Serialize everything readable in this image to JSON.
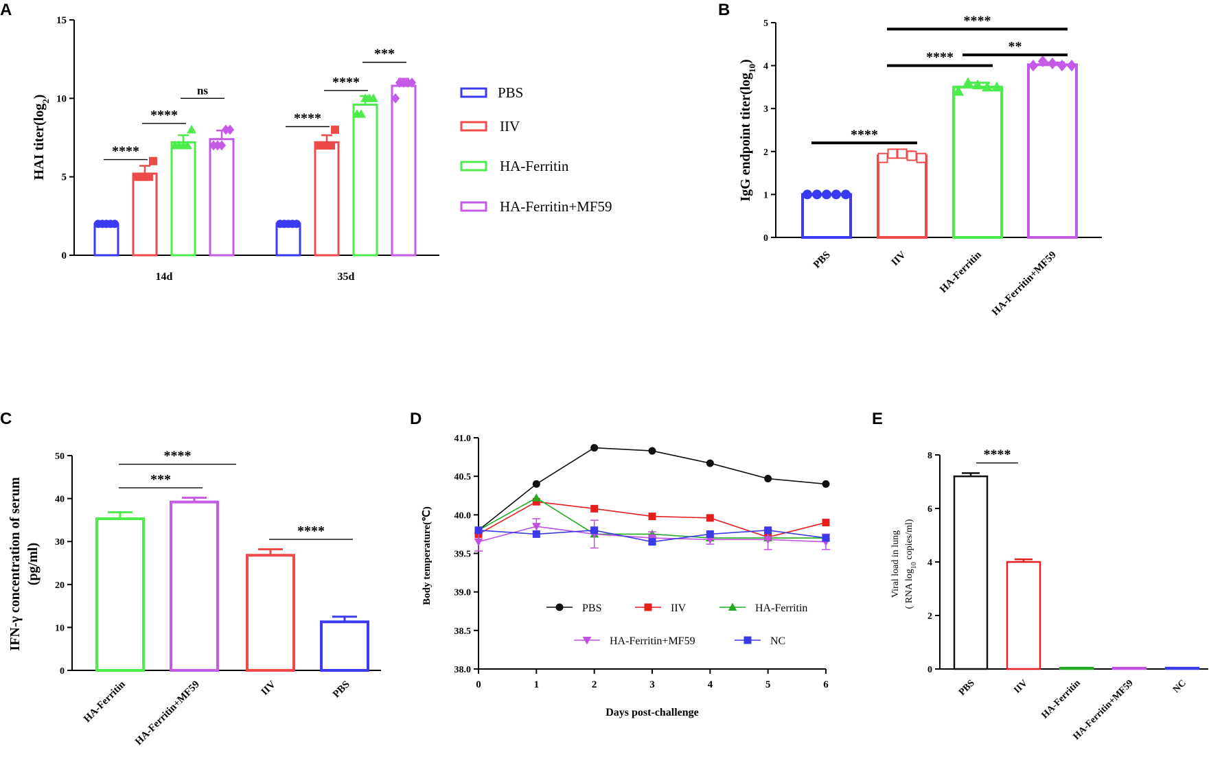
{
  "chart_data": [
    {
      "panel": "A",
      "type": "bar",
      "ylabel_main": "HAI titer(log",
      "ylabel_sub": "2",
      "ylabel_tail": ")",
      "ylim": [
        0,
        15
      ],
      "yticks": [
        "0",
        "5",
        "10",
        "15"
      ],
      "groups": [
        "14d",
        "35d"
      ],
      "legend": [
        "PBS",
        "IIV",
        "HA-Ferritin",
        "HA-Ferritin+MF59"
      ],
      "colors": [
        "#3a3af2",
        "#ef4a4a",
        "#4cec4c",
        "#c45ae6"
      ],
      "series": [
        {
          "name": "PBS",
          "values": [
            2,
            2
          ],
          "errors": [
            0,
            0
          ],
          "points": [
            [
              2,
              2,
              2,
              2,
              2
            ],
            [
              2,
              2,
              2,
              2,
              2
            ]
          ],
          "marker": "circle"
        },
        {
          "name": "IIV",
          "values": [
            5.2,
            7.2
          ],
          "errors": [
            0.5,
            0.45
          ],
          "points": [
            [
              5,
              5,
              5,
              5,
              6
            ],
            [
              7,
              7,
              7,
              7,
              8
            ]
          ],
          "marker": "square"
        },
        {
          "name": "HA-Ferritin",
          "values": [
            7.2,
            9.6
          ],
          "errors": [
            0.45,
            0.55
          ],
          "points": [
            [
              7,
              7,
              7,
              7,
              8
            ],
            [
              9,
              9,
              10,
              10,
              10
            ]
          ],
          "marker": "triangle"
        },
        {
          "name": "HA-Ferritin+MF59",
          "values": [
            7.4,
            10.8
          ],
          "errors": [
            0.55,
            0.45
          ],
          "points": [
            [
              7,
              7,
              7,
              8,
              8
            ],
            [
              10,
              11,
              11,
              11,
              11
            ]
          ],
          "marker": "diamond"
        }
      ],
      "significance": [
        {
          "label": "****",
          "from": [
            0,
            0
          ],
          "to": [
            0,
            1
          ],
          "y": 6.1
        },
        {
          "label": "****",
          "from": [
            0,
            1
          ],
          "to": [
            0,
            2
          ],
          "y": 8.4
        },
        {
          "label": "ns",
          "from": [
            0,
            2
          ],
          "to": [
            0,
            3
          ],
          "y": 10.0
        },
        {
          "label": "****",
          "from": [
            1,
            0
          ],
          "to": [
            1,
            1
          ],
          "y": 8.2
        },
        {
          "label": "****",
          "from": [
            1,
            1
          ],
          "to": [
            1,
            2
          ],
          "y": 10.5
        },
        {
          "label": "***",
          "from": [
            1,
            2
          ],
          "to": [
            1,
            3
          ],
          "y": 12.3
        }
      ]
    },
    {
      "panel": "B",
      "type": "bar",
      "ylabel_main": "IgG endpoint titer(log",
      "ylabel_sub": "10",
      "ylabel_tail": ")",
      "ylim": [
        0,
        5
      ],
      "yticks": [
        "0",
        "1",
        "2",
        "3",
        "4",
        "5"
      ],
      "categories": [
        "PBS",
        "IIV",
        "HA-Ferritin",
        "HA-Ferritin+MF59"
      ],
      "colors": [
        "#3a3af2",
        "#ef4a4a",
        "#4cec4c",
        "#c45ae6"
      ],
      "values": [
        1.0,
        1.9,
        3.5,
        4.02
      ],
      "errors": [
        0,
        0.1,
        0.1,
        0.05
      ],
      "points": [
        [
          1,
          1,
          1,
          1,
          1
        ],
        [
          1.85,
          1.95,
          1.95,
          1.9,
          1.85
        ],
        [
          3.4,
          3.6,
          3.55,
          3.5,
          3.5
        ],
        [
          4.0,
          4.1,
          4.05,
          4.0,
          4.0
        ]
      ],
      "markers": [
        "circle",
        "square",
        "triangle",
        "diamond"
      ],
      "significance": [
        {
          "label": "****",
          "from": 0,
          "to": 1,
          "y": 2.2
        },
        {
          "label": "****",
          "from": 1,
          "to": 2,
          "y": 4.0
        },
        {
          "label": "**",
          "from": 2,
          "to": 3,
          "y": 4.25
        },
        {
          "label": "****",
          "from": 1,
          "to": 3,
          "y": 4.85
        }
      ]
    },
    {
      "panel": "C",
      "type": "bar",
      "ylabel_line1": "IFN-γ concentration of serum",
      "ylabel_line2": "(pg/ml)",
      "ylim": [
        0,
        50
      ],
      "yticks": [
        "0",
        "10",
        "20",
        "30",
        "40",
        "50"
      ],
      "categories": [
        "HA-Ferritin",
        "HA-Ferritin+MF59",
        "IIV",
        "PBS"
      ],
      "colors": [
        "#4cec4c",
        "#c45ae6",
        "#ef4a4a",
        "#3a3af2"
      ],
      "values": [
        35.3,
        39.2,
        26.8,
        11.3
      ],
      "errors": [
        1.5,
        1.0,
        1.4,
        1.2
      ],
      "significance": [
        {
          "label": "***",
          "from": 0,
          "to": 1,
          "y": 42.5
        },
        {
          "label": "****",
          "from": 0,
          "to": 2,
          "y": 48.0
        },
        {
          "label": "****",
          "from": 2,
          "to": 3,
          "y": 30.5
        }
      ]
    },
    {
      "panel": "D",
      "type": "line",
      "xlabel": "Days post-challenge",
      "ylabel": "Body temperature(℃)",
      "x": [
        0,
        1,
        2,
        3,
        4,
        5,
        6
      ],
      "xticks": [
        "0",
        "1",
        "2",
        "3",
        "4",
        "5",
        "6"
      ],
      "ylim": [
        38.0,
        41.0
      ],
      "yticks": [
        "38.0",
        "38.5",
        "39.0",
        "39.5",
        "40.0",
        "40.5",
        "41.0"
      ],
      "series": [
        {
          "name": "PBS",
          "color": "#111111",
          "marker": "circle",
          "values": [
            39.8,
            40.4,
            40.87,
            40.83,
            40.67,
            40.47,
            40.4
          ],
          "errors": [
            0,
            0,
            0,
            0,
            0,
            0,
            0
          ]
        },
        {
          "name": "IIV",
          "color": "#e61e1e",
          "marker": "square",
          "values": [
            39.75,
            40.17,
            40.08,
            39.98,
            39.96,
            39.71,
            39.9
          ],
          "errors": [
            0,
            0,
            0,
            0,
            0,
            0,
            0
          ]
        },
        {
          "name": "HA-Ferritin",
          "color": "#22aa22",
          "marker": "triangle",
          "values": [
            39.8,
            40.22,
            39.75,
            39.75,
            39.7,
            39.7,
            39.7
          ],
          "errors": [
            0,
            0,
            0,
            0,
            0,
            0,
            0
          ]
        },
        {
          "name": "HA-Ferritin+MF59",
          "color": "#c050e0",
          "marker": "triangle-down",
          "values": [
            39.65,
            39.85,
            39.75,
            39.7,
            39.68,
            39.68,
            39.65
          ],
          "errors": [
            0.12,
            0.1,
            0.18,
            0.08,
            0.06,
            0.13,
            0.1
          ]
        },
        {
          "name": "NC",
          "color": "#3a3ae8",
          "marker": "square",
          "values": [
            39.8,
            39.75,
            39.8,
            39.65,
            39.75,
            39.8,
            39.7
          ],
          "errors": [
            0,
            0,
            0,
            0,
            0,
            0,
            0
          ]
        }
      ]
    },
    {
      "panel": "E",
      "type": "bar",
      "ylabel_line1": "Viral load in lung",
      "ylabel_line2_a": "( RNA log",
      "ylabel_line2_sub": "10",
      "ylabel_line2_b": " copies/ml)",
      "ylim": [
        0,
        8
      ],
      "yticks": [
        "0",
        "2",
        "4",
        "6",
        "8"
      ],
      "categories": [
        "PBS",
        "IIV",
        "HA-Ferritin",
        "HA-Ferritin+MF59",
        "NC"
      ],
      "colors": [
        "#111111",
        "#e61e1e",
        "#22aa22",
        "#c050e0",
        "#3a3ae8"
      ],
      "values": [
        7.2,
        4.0,
        0.05,
        0.05,
        0.05
      ],
      "errors": [
        0.12,
        0.1,
        0,
        0,
        0
      ],
      "significance": [
        {
          "label": "****",
          "from": 0,
          "to": 1,
          "y": 7.7
        }
      ]
    }
  ],
  "panel_letters": [
    "A",
    "B",
    "C",
    "D",
    "E"
  ]
}
